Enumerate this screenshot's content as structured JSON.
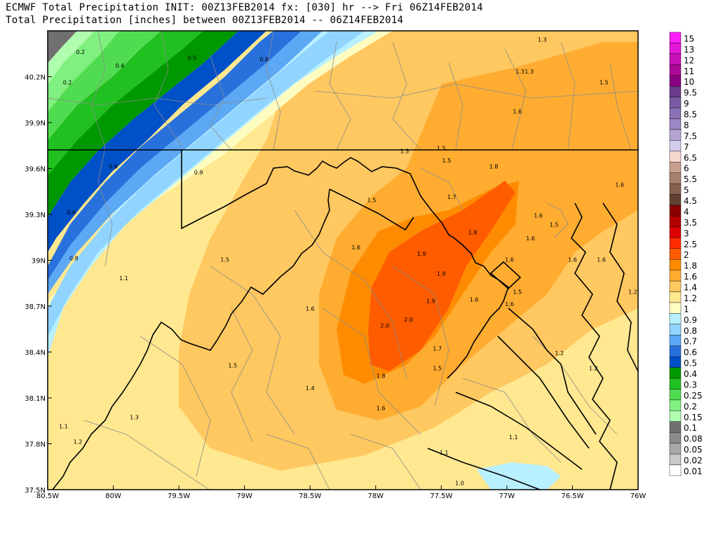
{
  "titles": {
    "line1": "ECMWF Total Precipitation INIT: 00Z13FEB2014 fx: [030] hr --> Fri 06Z14FEB2014",
    "line2": "Total Precipitation [inches] between 00Z13FEB2014 -- 06Z14FEB2014"
  },
  "axes": {
    "x_ticks": [
      "80.5W",
      "80W",
      "79.5W",
      "79W",
      "78.5W",
      "78W",
      "77.5W",
      "77W",
      "76.5W",
      "76W"
    ],
    "y_ticks": [
      "40.2N",
      "39.9N",
      "39.6N",
      "39.3N",
      "39N",
      "38.7N",
      "38.4N",
      "38.1N",
      "37.8N",
      "37.5N"
    ]
  },
  "legend": [
    {
      "label": "15",
      "color": "#ff20ff"
    },
    {
      "label": "13",
      "color": "#e418d8"
    },
    {
      "label": "12",
      "color": "#c810b8"
    },
    {
      "label": "11",
      "color": "#ac0898"
    },
    {
      "label": "10",
      "color": "#8a0080"
    },
    {
      "label": "9.5",
      "color": "#6a3c8c"
    },
    {
      "label": "9",
      "color": "#7a5aa4"
    },
    {
      "label": "8.5",
      "color": "#8a70b4"
    },
    {
      "label": "8",
      "color": "#9c88c4"
    },
    {
      "label": "7.5",
      "color": "#b4a4d4"
    },
    {
      "label": "7",
      "color": "#d4ccec"
    },
    {
      "label": "6.5",
      "color": "#f4d8cc"
    },
    {
      "label": "6",
      "color": "#c8a090"
    },
    {
      "label": "5.5",
      "color": "#a88070"
    },
    {
      "label": "5",
      "color": "#886050"
    },
    {
      "label": "4.5",
      "color": "#604030"
    },
    {
      "label": "4",
      "color": "#8c0000"
    },
    {
      "label": "3.5",
      "color": "#b40000"
    },
    {
      "label": "3",
      "color": "#dc0000"
    },
    {
      "label": "2.5",
      "color": "#ff2c00"
    },
    {
      "label": "2",
      "color": "#ff5c00"
    },
    {
      "label": "1.8",
      "color": "#ff8c00"
    },
    {
      "label": "1.6",
      "color": "#ffac30"
    },
    {
      "label": "1.4",
      "color": "#ffc860"
    },
    {
      "label": "1.2",
      "color": "#ffe890"
    },
    {
      "label": "1",
      "color": "#fffcc0"
    },
    {
      "label": "0.9",
      "color": "#b8f0ff"
    },
    {
      "label": "0.8",
      "color": "#90d4ff"
    },
    {
      "label": "0.7",
      "color": "#5ca8f4"
    },
    {
      "label": "0.6",
      "color": "#2870dc"
    },
    {
      "label": "0.5",
      "color": "#0050c8"
    },
    {
      "label": "0.4",
      "color": "#009800"
    },
    {
      "label": "0.3",
      "color": "#20c020"
    },
    {
      "label": "0.25",
      "color": "#50dc50"
    },
    {
      "label": "0.2",
      "color": "#80f080"
    },
    {
      "label": "0.15",
      "color": "#b0ffb0"
    },
    {
      "label": "0.1",
      "color": "#707070"
    },
    {
      "label": "0.08",
      "color": "#8c8c8c"
    },
    {
      "label": "0.05",
      "color": "#a8a8a8"
    },
    {
      "label": "0.02",
      "color": "#c8c8c8"
    },
    {
      "label": "0.01",
      "color": "#ffffff"
    }
  ],
  "contour_labels": [
    {
      "text": "0.2",
      "lon": -80.25,
      "lat": 40.35
    },
    {
      "text": "0.2",
      "lon": -80.35,
      "lat": 40.15
    },
    {
      "text": "0.4",
      "lon": -79.95,
      "lat": 40.26
    },
    {
      "text": "0.5",
      "lon": -79.4,
      "lat": 40.31
    },
    {
      "text": "0.8",
      "lon": -78.85,
      "lat": 40.3
    },
    {
      "text": "0.6",
      "lon": -80.0,
      "lat": 39.6
    },
    {
      "text": "0.6",
      "lon": -80.32,
      "lat": 39.3
    },
    {
      "text": "0.8",
      "lon": -80.3,
      "lat": 39.0
    },
    {
      "text": "0.9",
      "lon": -79.35,
      "lat": 39.56
    },
    {
      "text": "1.1",
      "lon": -79.92,
      "lat": 38.87
    },
    {
      "text": "1.5",
      "lon": -79.15,
      "lat": 38.99
    },
    {
      "text": "1.6",
      "lon": -78.5,
      "lat": 38.67
    },
    {
      "text": "1.5",
      "lon": -78.03,
      "lat": 39.38
    },
    {
      "text": "1.6",
      "lon": -78.15,
      "lat": 39.07
    },
    {
      "text": "1.7",
      "lon": -77.42,
      "lat": 39.4
    },
    {
      "text": "1.9",
      "lon": -77.65,
      "lat": 39.03
    },
    {
      "text": "1.9",
      "lon": -77.5,
      "lat": 38.9
    },
    {
      "text": "1.9",
      "lon": -77.58,
      "lat": 38.72
    },
    {
      "text": "1.8",
      "lon": -77.26,
      "lat": 39.17
    },
    {
      "text": "2.0",
      "lon": -77.93,
      "lat": 38.56
    },
    {
      "text": "2.0",
      "lon": -77.75,
      "lat": 38.6
    },
    {
      "text": "1.6",
      "lon": -77.25,
      "lat": 38.73
    },
    {
      "text": "1.7",
      "lon": -77.53,
      "lat": 38.41
    },
    {
      "text": "1.5",
      "lon": -77.53,
      "lat": 38.28
    },
    {
      "text": "1.8",
      "lon": -77.96,
      "lat": 38.23
    },
    {
      "text": "1.6",
      "lon": -77.96,
      "lat": 38.02
    },
    {
      "text": "1.5",
      "lon": -79.09,
      "lat": 38.3
    },
    {
      "text": "1.4",
      "lon": -78.5,
      "lat": 38.15
    },
    {
      "text": "1.3",
      "lon": -79.84,
      "lat": 37.96
    },
    {
      "text": "1.1",
      "lon": -80.38,
      "lat": 37.9
    },
    {
      "text": "1.2",
      "lon": -80.27,
      "lat": 37.8
    },
    {
      "text": "1.3",
      "lon": -77.78,
      "lat": 39.7
    },
    {
      "text": "1.5",
      "lon": -77.5,
      "lat": 39.72
    },
    {
      "text": "1.5",
      "lon": -77.46,
      "lat": 39.64
    },
    {
      "text": "1.8",
      "lon": -77.1,
      "lat": 39.6
    },
    {
      "text": "1.6",
      "lon": -76.92,
      "lat": 39.96
    },
    {
      "text": "1.5",
      "lon": -76.26,
      "lat": 40.15
    },
    {
      "text": "1.3",
      "lon": -76.73,
      "lat": 40.43
    },
    {
      "text": "1.3",
      "lon": -76.9,
      "lat": 40.22
    },
    {
      "text": "1.3",
      "lon": -76.83,
      "lat": 40.22
    },
    {
      "text": "1.6",
      "lon": -76.14,
      "lat": 39.48
    },
    {
      "text": "1.6",
      "lon": -76.76,
      "lat": 39.28
    },
    {
      "text": "1.5",
      "lon": -76.64,
      "lat": 39.22
    },
    {
      "text": "1.6",
      "lon": -76.82,
      "lat": 39.13
    },
    {
      "text": "1.6",
      "lon": -76.98,
      "lat": 38.99
    },
    {
      "text": "1.5",
      "lon": -76.92,
      "lat": 38.78
    },
    {
      "text": "1.6",
      "lon": -76.98,
      "lat": 38.7
    },
    {
      "text": "1.6",
      "lon": -76.5,
      "lat": 38.99
    },
    {
      "text": "1.6",
      "lon": -76.28,
      "lat": 38.99
    },
    {
      "text": "1.2",
      "lon": -76.04,
      "lat": 38.78
    },
    {
      "text": "1.2",
      "lon": -76.6,
      "lat": 38.38
    },
    {
      "text": "1.2",
      "lon": -76.34,
      "lat": 38.28
    },
    {
      "text": "1.1",
      "lon": -76.95,
      "lat": 37.83
    },
    {
      "text": "1.1",
      "lon": -77.48,
      "lat": 37.73
    },
    {
      "text": "1.0",
      "lon": -77.36,
      "lat": 37.53
    }
  ]
}
